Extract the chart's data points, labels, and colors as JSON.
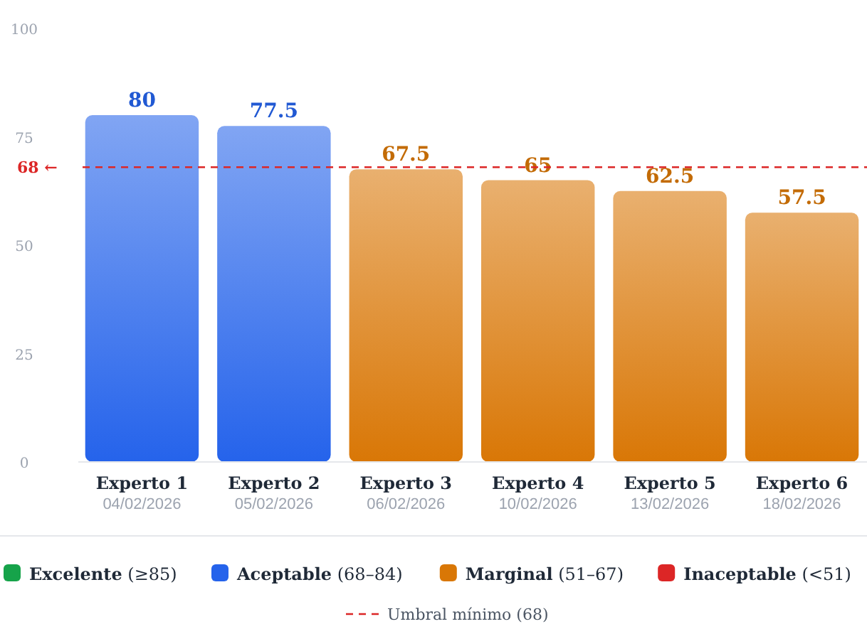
{
  "chart_data": {
    "type": "bar",
    "stacked": true,
    "categories": [
      "Experto 1\n04/02/2026",
      "Experto 2\n05/02/2026",
      "Experto 3\n06/02/2026",
      "Experto 4\n10/02/2026",
      "Experto 5\n13/02/2026",
      "Experto 6\n18/02/2026"
    ],
    "series": [
      {
        "name": "Excelente (≥85)",
        "color": "#16a34a",
        "values": [
          null,
          null,
          null,
          null,
          null,
          null
        ]
      },
      {
        "name": "Aceptable (68–84)",
        "color": "#2563eb",
        "values": [
          80,
          77.5,
          null,
          null,
          null,
          null
        ]
      },
      {
        "name": "Marginal (51–67)",
        "color": "#d97706",
        "values": [
          null,
          null,
          67.5,
          65,
          62.5,
          57.5
        ]
      },
      {
        "name": "Inaceptable (<51)",
        "color": "#dc2626",
        "values": [
          null,
          null,
          null,
          null,
          null,
          null
        ]
      }
    ],
    "ylim": [
      0,
      100
    ],
    "yticks": [
      0,
      25,
      50,
      75,
      100
    ],
    "grid": false,
    "legend": "bottom",
    "data_labels": true,
    "ref_lines": [
      {
        "axis": "y",
        "value": 68,
        "label": "Umbral mínimo (68)",
        "color": "#dc2626",
        "line_style": "dashed"
      }
    ],
    "annotations": [
      "68 ←"
    ]
  }
}
